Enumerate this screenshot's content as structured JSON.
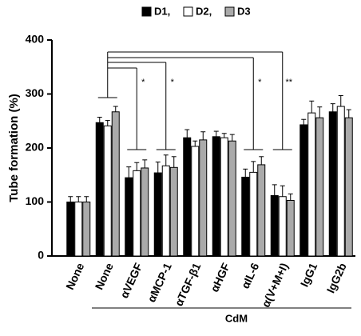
{
  "chart_data": {
    "type": "bar",
    "ylabel": "Tube formation (%)",
    "group_label": "CdM",
    "categories": [
      "None",
      "None",
      "αVEGF",
      "αMCP-1",
      "αTGF-β1",
      "αHGF",
      "αIL-6",
      "α(V+M+I)",
      "IgG1",
      "IgG2b"
    ],
    "category_colors": [
      "#000000",
      "#000000",
      "#1a1aa8",
      "#1a1aa8",
      "#000000",
      "#000000",
      "#1a1aa8",
      "#1a1aa8",
      "#000000",
      "#000000"
    ],
    "series": [
      {
        "name": "D1,",
        "color": "#000000",
        "values": [
          100,
          247,
          145,
          154,
          219,
          221,
          146,
          112,
          243,
          267
        ],
        "errors": [
          10,
          10,
          20,
          20,
          15,
          10,
          15,
          20,
          10,
          15
        ]
      },
      {
        "name": "D2,",
        "color": "#ffffff",
        "values": [
          100,
          241,
          158,
          167,
          203,
          219,
          155,
          110,
          265,
          277
        ],
        "errors": [
          10,
          10,
          15,
          20,
          10,
          8,
          20,
          20,
          22,
          20
        ]
      },
      {
        "name": "D3",
        "color": "#aaaaaa",
        "values": [
          100,
          267,
          163,
          164,
          215,
          213,
          169,
          103,
          256,
          256
        ],
        "errors": [
          10,
          10,
          15,
          20,
          15,
          12,
          15,
          12,
          20,
          15
        ]
      }
    ],
    "annotations": [
      "*",
      "*",
      "*",
      "**"
    ],
    "ylim": [
      0,
      400
    ],
    "yticks": [
      0,
      100,
      200,
      300,
      400
    ]
  }
}
